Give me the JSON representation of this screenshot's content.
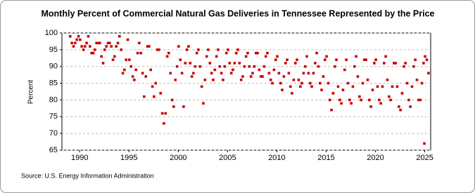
{
  "chart_data": {
    "type": "scatter",
    "title": "Monthly Percent of Commercial Natural Gas Deliveries in Tennessee Represented by the Price",
    "y_label": "Percent",
    "source": "Source: U.S. Energy Information Administration",
    "color": "#cc0000",
    "grid": true,
    "xlim": [
      1988.2,
      2025.6
    ],
    "ylim": [
      65,
      100
    ],
    "xticks": [
      1990,
      1995,
      2000,
      2005,
      2010,
      2015,
      2020,
      2025
    ],
    "yticks": [
      65,
      70,
      75,
      80,
      85,
      90,
      95,
      100
    ],
    "x": [
      1989.04,
      1989.21,
      1989.38,
      1989.54,
      1989.71,
      1989.88,
      1990.04,
      1990.21,
      1990.38,
      1990.54,
      1990.71,
      1990.88,
      1991.04,
      1991.21,
      1991.38,
      1991.54,
      1991.71,
      1991.88,
      1992.04,
      1992.21,
      1992.38,
      1992.54,
      1992.71,
      1992.88,
      1993.04,
      1993.21,
      1993.38,
      1993.54,
      1993.71,
      1993.88,
      1994.04,
      1994.21,
      1994.38,
      1994.54,
      1994.71,
      1994.88,
      1995.04,
      1995.21,
      1995.38,
      1995.54,
      1995.71,
      1995.88,
      1996.04,
      1996.21,
      1996.38,
      1996.54,
      1996.71,
      1996.88,
      1997.04,
      1997.21,
      1997.38,
      1997.54,
      1997.71,
      1997.88,
      1998.04,
      1998.21,
      1998.38,
      1998.54,
      1998.71,
      1998.88,
      1999.04,
      1999.21,
      1999.38,
      1999.54,
      1999.71,
      1999.88,
      2000.04,
      2000.21,
      2000.38,
      2000.54,
      2000.71,
      2000.88,
      2001.04,
      2001.21,
      2001.38,
      2001.54,
      2001.71,
      2001.88,
      2002.04,
      2002.21,
      2002.38,
      2002.54,
      2002.71,
      2002.88,
      2003.04,
      2003.21,
      2003.38,
      2003.54,
      2003.71,
      2003.88,
      2004.04,
      2004.21,
      2004.38,
      2004.54,
      2004.71,
      2004.88,
      2005.04,
      2005.21,
      2005.38,
      2005.54,
      2005.71,
      2005.88,
      2006.04,
      2006.21,
      2006.38,
      2006.54,
      2006.71,
      2006.88,
      2007.04,
      2007.21,
      2007.38,
      2007.54,
      2007.71,
      2007.88,
      2008.04,
      2008.21,
      2008.38,
      2008.54,
      2008.71,
      2008.88,
      2009.04,
      2009.21,
      2009.38,
      2009.54,
      2009.71,
      2009.88,
      2010.04,
      2010.21,
      2010.38,
      2010.54,
      2010.71,
      2010.88,
      2011.04,
      2011.21,
      2011.38,
      2011.54,
      2011.71,
      2011.88,
      2012.04,
      2012.21,
      2012.38,
      2012.54,
      2012.71,
      2012.88,
      2013.04,
      2013.21,
      2013.38,
      2013.54,
      2013.71,
      2013.88,
      2014.04,
      2014.21,
      2014.38,
      2014.54,
      2014.71,
      2014.88,
      2015.04,
      2015.21,
      2015.38,
      2015.54,
      2015.71,
      2015.88,
      2016.04,
      2016.21,
      2016.38,
      2016.54,
      2016.71,
      2016.88,
      2017.04,
      2017.21,
      2017.38,
      2017.54,
      2017.71,
      2017.88,
      2018.04,
      2018.21,
      2018.38,
      2018.54,
      2018.71,
      2018.88,
      2019.04,
      2019.21,
      2019.38,
      2019.54,
      2019.71,
      2019.88,
      2020.04,
      2020.21,
      2020.38,
      2020.54,
      2020.71,
      2020.88,
      2021.04,
      2021.21,
      2021.38,
      2021.54,
      2021.71,
      2021.88,
      2022.04,
      2022.21,
      2022.38,
      2022.54,
      2022.71,
      2022.88,
      2023.04,
      2023.21,
      2023.38,
      2023.54,
      2023.71,
      2023.88,
      2024.04,
      2024.21,
      2024.38,
      2024.54,
      2024.71,
      2024.88,
      2024.96,
      2025.04,
      2025.21,
      2025.38
    ],
    "values": [
      99,
      97,
      96,
      97,
      98,
      99,
      98,
      96,
      95,
      96,
      97,
      99,
      96,
      94,
      94,
      95,
      97,
      97,
      97,
      93,
      91,
      95,
      96,
      97,
      97,
      96,
      92,
      93,
      96,
      97,
      99,
      95,
      88,
      89,
      92,
      98,
      92,
      90,
      87,
      86,
      89,
      94,
      97,
      94,
      88,
      81,
      87,
      96,
      96,
      89,
      84,
      81,
      85,
      95,
      95,
      82,
      76,
      73,
      76,
      93,
      94,
      88,
      80,
      78,
      86,
      90,
      96,
      92,
      88,
      78,
      91,
      95,
      96,
      91,
      87,
      88,
      90,
      94,
      95,
      90,
      84,
      79,
      86,
      93,
      95,
      91,
      88,
      86,
      89,
      93,
      95,
      90,
      88,
      86,
      90,
      94,
      95,
      91,
      88,
      89,
      91,
      94,
      95,
      91,
      86,
      87,
      90,
      93,
      94,
      90,
      87,
      88,
      90,
      94,
      94,
      89,
      87,
      87,
      90,
      93,
      94,
      88,
      86,
      85,
      89,
      92,
      93,
      88,
      85,
      83,
      87,
      91,
      92,
      88,
      84,
      82,
      86,
      91,
      92,
      86,
      84,
      85,
      88,
      90,
      93,
      88,
      85,
      84,
      88,
      91,
      94,
      90,
      85,
      83,
      87,
      92,
      93,
      85,
      80,
      77,
      82,
      90,
      92,
      84,
      80,
      79,
      83,
      89,
      92,
      85,
      80,
      79,
      84,
      90,
      93,
      87,
      81,
      80,
      85,
      92,
      92,
      86,
      80,
      78,
      83,
      91,
      92,
      84,
      80,
      79,
      84,
      91,
      93,
      86,
      81,
      80,
      84,
      91,
      91,
      84,
      78,
      77,
      82,
      90,
      91,
      85,
      80,
      78,
      84,
      90,
      92,
      86,
      80,
      80,
      85,
      91,
      67,
      93,
      92,
      88
    ]
  }
}
